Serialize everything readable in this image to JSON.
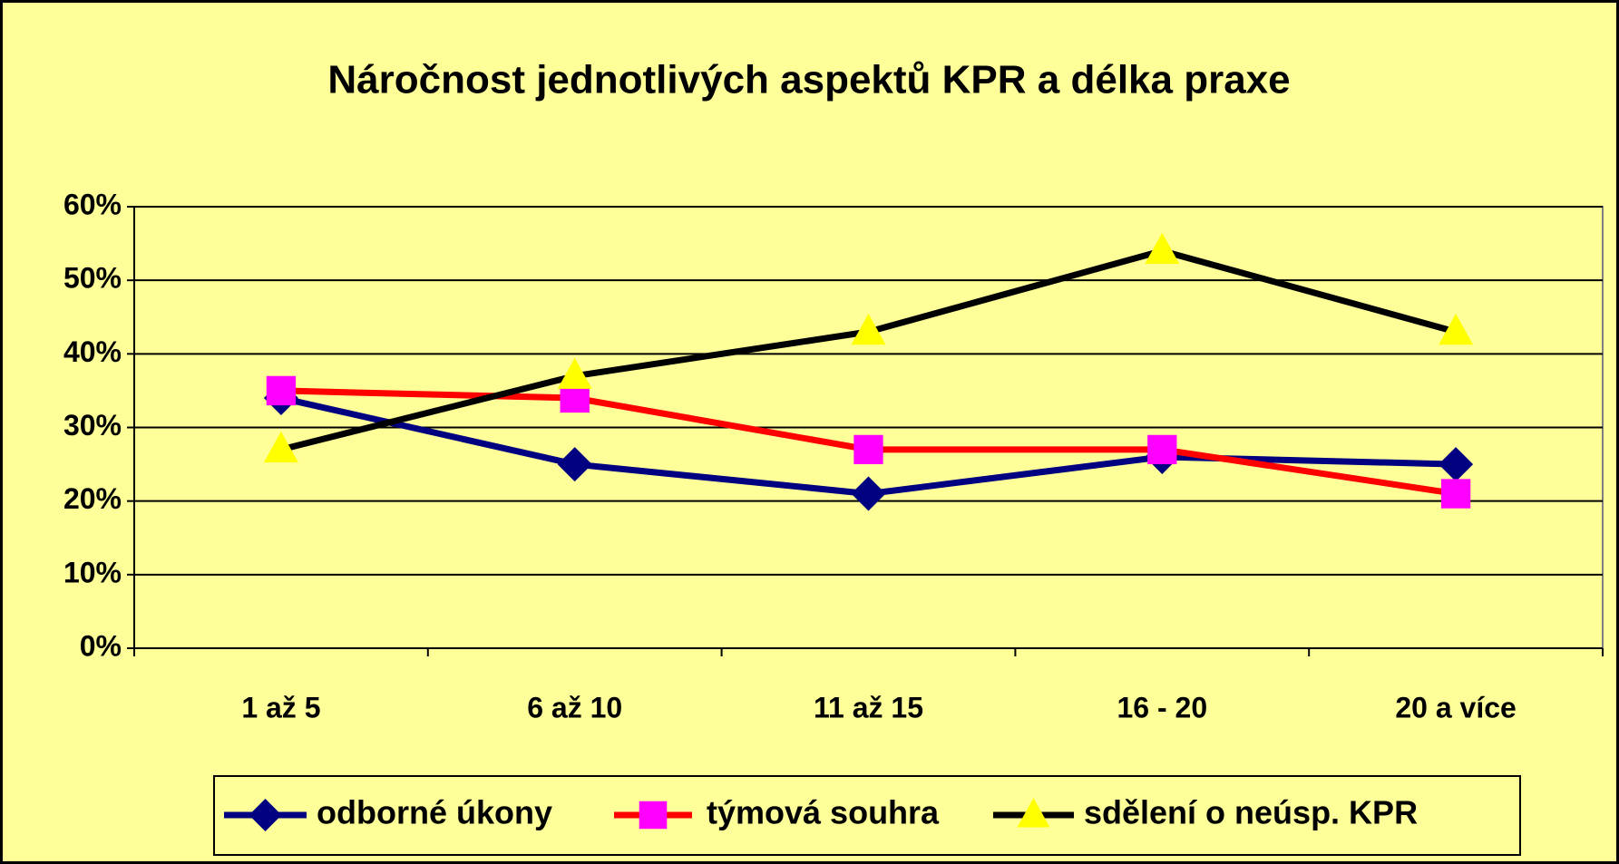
{
  "chart_data": {
    "type": "line",
    "title": "Náročnost jednotlivých aspektů KPR a délka praxe",
    "categories": [
      "1 až 5",
      "6 až 10",
      "11 až 15",
      "16 - 20",
      "20 a více"
    ],
    "series": [
      {
        "name": "odborné úkony",
        "color": "#000080",
        "marker": "diamond",
        "marker_color": "#000080",
        "values": [
          34,
          25,
          21,
          26,
          25
        ]
      },
      {
        "name": "týmová souhra",
        "color": "#ff0000",
        "marker": "square",
        "marker_color": "#ff00ff",
        "values": [
          35,
          34,
          27,
          27,
          21
        ]
      },
      {
        "name": "sdělení o neúsp. KPR",
        "color": "#000000",
        "marker": "triangle",
        "marker_color": "#ffff00",
        "values": [
          27,
          37,
          43,
          54,
          43
        ]
      }
    ],
    "ylim": [
      0,
      60
    ],
    "yticks": [
      {
        "value": 0,
        "label": "0%"
      },
      {
        "value": 10,
        "label": "10%"
      },
      {
        "value": 20,
        "label": "20%"
      },
      {
        "value": 30,
        "label": "30%"
      },
      {
        "value": 40,
        "label": "40%"
      },
      {
        "value": 50,
        "label": "50%"
      },
      {
        "value": 60,
        "label": "60%"
      }
    ],
    "grid": true,
    "legend": "bottom"
  }
}
